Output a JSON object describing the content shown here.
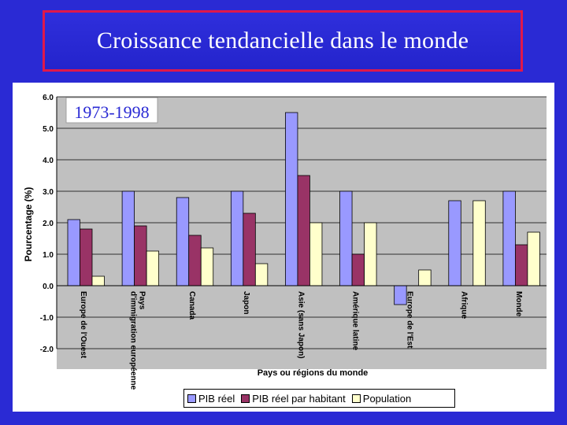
{
  "slide": {
    "title": "Croissance tendancielle dans le monde"
  },
  "colors": {
    "background": "#2a2ad4",
    "title_border": "#e0184a",
    "plot_area": "#c0c0c0",
    "pib_reel": "#9999ff",
    "pib_par_habitant": "#993366",
    "population": "#ffffcc"
  },
  "chart_data": {
    "type": "bar",
    "period_label": "1973-1998",
    "xlabel": "Pays ou régions du monde",
    "ylabel": "Pourcentage (%)",
    "ylim": [
      -2.0,
      6.0
    ],
    "yticks": [
      "6.0",
      "5.0",
      "4.0",
      "3.0",
      "2.0",
      "1.0",
      "0.0",
      "-1.0",
      "-2.0"
    ],
    "ytick_values": [
      6,
      5,
      4,
      3,
      2,
      1,
      0,
      -1,
      -2
    ],
    "grid": true,
    "legend_position": "bottom",
    "categories": [
      "Europe de l'Ouest",
      "Pays d'immigration européenne",
      "Canada",
      "Japon",
      "Asie (sans Japon)",
      "Amérique latine",
      "Europe de l'Est",
      "Afrique",
      "Monde"
    ],
    "category_lines": [
      [
        "Europe de l'Ouest"
      ],
      [
        "Pays",
        "d'immigration européenne"
      ],
      [
        "Canada"
      ],
      [
        "Japon"
      ],
      [
        "Asie (sans Japon)"
      ],
      [
        "Amérique latine"
      ],
      [
        "Europe de l'Est"
      ],
      [
        "Afrique"
      ],
      [
        "Monde"
      ]
    ],
    "series": [
      {
        "name": "PIB réel",
        "values": [
          2.1,
          3.0,
          2.8,
          3.0,
          5.5,
          3.0,
          -0.6,
          2.7,
          3.0
        ]
      },
      {
        "name": "PIB réel par habitant",
        "values": [
          1.8,
          1.9,
          1.6,
          2.3,
          3.5,
          1.0,
          null,
          null,
          1.3
        ]
      },
      {
        "name": "Population",
        "values": [
          0.3,
          1.1,
          1.2,
          0.7,
          2.0,
          2.0,
          0.5,
          2.7,
          1.7
        ]
      }
    ]
  }
}
